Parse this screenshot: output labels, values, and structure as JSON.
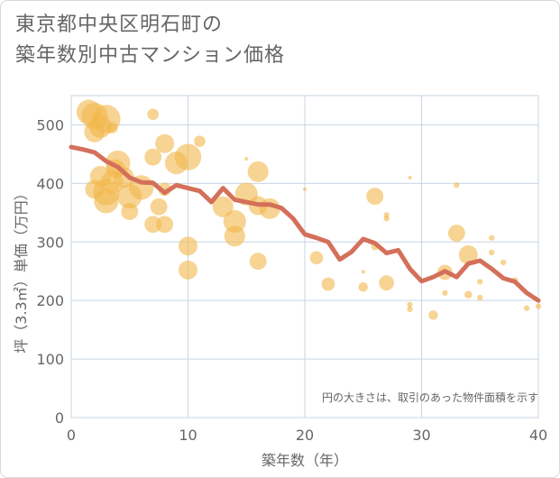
{
  "title": {
    "line1": "東京都中央区明石町の",
    "line2": "築年数別中古マンション価格"
  },
  "chart_data": {
    "type": "scatter",
    "title": "東京都中央区明石町の築年数別中古マンション価格",
    "xlabel": "築年数（年）",
    "ylabel": "坪（3.3㎡）単価（万円）",
    "xlim": [
      0,
      40
    ],
    "ylim": [
      0,
      550
    ],
    "xticks": [
      0,
      10,
      20,
      30,
      40
    ],
    "yticks": [
      0,
      100,
      200,
      300,
      400,
      500
    ],
    "grid": true,
    "annotation": "円の大きさは、取引のあった物件面積を示す",
    "colors": {
      "bubble": "#f2b84b",
      "line": "#d4705a",
      "grid": "#c9d6e3",
      "text": "#666666"
    },
    "bubbles": [
      {
        "x": 1.5,
        "y": 522,
        "s": 13
      },
      {
        "x": 2.0,
        "y": 515,
        "s": 14
      },
      {
        "x": 2.5,
        "y": 497,
        "s": 12
      },
      {
        "x": 2.0,
        "y": 488,
        "s": 11
      },
      {
        "x": 3.0,
        "y": 510,
        "s": 15
      },
      {
        "x": 3.5,
        "y": 495,
        "s": 6
      },
      {
        "x": 2.5,
        "y": 412,
        "s": 11
      },
      {
        "x": 2.0,
        "y": 390,
        "s": 10
      },
      {
        "x": 3.0,
        "y": 385,
        "s": 14
      },
      {
        "x": 3.5,
        "y": 402,
        "s": 12
      },
      {
        "x": 3.0,
        "y": 370,
        "s": 13
      },
      {
        "x": 3.8,
        "y": 425,
        "s": 10
      },
      {
        "x": 4.0,
        "y": 435,
        "s": 13
      },
      {
        "x": 4.5,
        "y": 410,
        "s": 11
      },
      {
        "x": 5.0,
        "y": 378,
        "s": 13
      },
      {
        "x": 5.0,
        "y": 352,
        "s": 9
      },
      {
        "x": 6.0,
        "y": 393,
        "s": 13
      },
      {
        "x": 7.0,
        "y": 518,
        "s": 6
      },
      {
        "x": 7.0,
        "y": 445,
        "s": 9
      },
      {
        "x": 7.5,
        "y": 360,
        "s": 9
      },
      {
        "x": 7.0,
        "y": 330,
        "s": 9
      },
      {
        "x": 8.0,
        "y": 468,
        "s": 10
      },
      {
        "x": 8.0,
        "y": 390,
        "s": 7
      },
      {
        "x": 8.0,
        "y": 330,
        "s": 9
      },
      {
        "x": 9.0,
        "y": 435,
        "s": 12
      },
      {
        "x": 10.0,
        "y": 445,
        "s": 14
      },
      {
        "x": 11.0,
        "y": 472,
        "s": 6
      },
      {
        "x": 10.0,
        "y": 293,
        "s": 10
      },
      {
        "x": 10.0,
        "y": 252,
        "s": 10
      },
      {
        "x": 13.0,
        "y": 360,
        "s": 11
      },
      {
        "x": 14.0,
        "y": 335,
        "s": 12
      },
      {
        "x": 14.0,
        "y": 310,
        "s": 11
      },
      {
        "x": 15.0,
        "y": 442,
        "s": 2
      },
      {
        "x": 15.0,
        "y": 382,
        "s": 12
      },
      {
        "x": 16.0,
        "y": 420,
        "s": 11
      },
      {
        "x": 16.0,
        "y": 362,
        "s": 10
      },
      {
        "x": 17.0,
        "y": 357,
        "s": 11
      },
      {
        "x": 16.0,
        "y": 267,
        "s": 9
      },
      {
        "x": 20.0,
        "y": 390,
        "s": 1
      },
      {
        "x": 21.0,
        "y": 273,
        "s": 7
      },
      {
        "x": 22.0,
        "y": 228,
        "s": 7
      },
      {
        "x": 25.0,
        "y": 249,
        "s": 2
      },
      {
        "x": 25.0,
        "y": 223,
        "s": 5
      },
      {
        "x": 26.0,
        "y": 378,
        "s": 9
      },
      {
        "x": 26.0,
        "y": 292,
        "s": 4
      },
      {
        "x": 27.0,
        "y": 346,
        "s": 3
      },
      {
        "x": 27.0,
        "y": 340,
        "s": 3
      },
      {
        "x": 27.0,
        "y": 230,
        "s": 8
      },
      {
        "x": 29.0,
        "y": 410,
        "s": 2
      },
      {
        "x": 29.0,
        "y": 193,
        "s": 3
      },
      {
        "x": 29.0,
        "y": 185,
        "s": 3
      },
      {
        "x": 31.0,
        "y": 175,
        "s": 5
      },
      {
        "x": 32.0,
        "y": 248,
        "s": 8
      },
      {
        "x": 32.0,
        "y": 213,
        "s": 3
      },
      {
        "x": 33.0,
        "y": 397,
        "s": 3
      },
      {
        "x": 33.0,
        "y": 315,
        "s": 9
      },
      {
        "x": 34.0,
        "y": 278,
        "s": 10
      },
      {
        "x": 34.0,
        "y": 210,
        "s": 4
      },
      {
        "x": 35.0,
        "y": 205,
        "s": 3
      },
      {
        "x": 35.0,
        "y": 232,
        "s": 3
      },
      {
        "x": 36.0,
        "y": 307,
        "s": 3
      },
      {
        "x": 36.0,
        "y": 282,
        "s": 3
      },
      {
        "x": 37.0,
        "y": 265,
        "s": 3
      },
      {
        "x": 38.0,
        "y": 235,
        "s": 3
      },
      {
        "x": 39.0,
        "y": 187,
        "s": 3
      },
      {
        "x": 40.0,
        "y": 190,
        "s": 3
      }
    ],
    "series": [
      {
        "values": [
          {
            "x": 0,
            "y": 462
          },
          {
            "x": 1,
            "y": 458
          },
          {
            "x": 2,
            "y": 453
          },
          {
            "x": 3,
            "y": 438
          },
          {
            "x": 4,
            "y": 428
          },
          {
            "x": 5,
            "y": 410
          },
          {
            "x": 6,
            "y": 402
          },
          {
            "x": 7,
            "y": 401
          },
          {
            "x": 8,
            "y": 384
          },
          {
            "x": 9,
            "y": 397
          },
          {
            "x": 10,
            "y": 392
          },
          {
            "x": 11,
            "y": 387
          },
          {
            "x": 12,
            "y": 368
          },
          {
            "x": 13,
            "y": 392
          },
          {
            "x": 14,
            "y": 372
          },
          {
            "x": 15,
            "y": 368
          },
          {
            "x": 16,
            "y": 364
          },
          {
            "x": 17,
            "y": 364
          },
          {
            "x": 18,
            "y": 358
          },
          {
            "x": 19,
            "y": 340
          },
          {
            "x": 20,
            "y": 313
          },
          {
            "x": 21,
            "y": 307
          },
          {
            "x": 22,
            "y": 300
          },
          {
            "x": 23,
            "y": 270
          },
          {
            "x": 24,
            "y": 283
          },
          {
            "x": 25,
            "y": 305
          },
          {
            "x": 26,
            "y": 298
          },
          {
            "x": 27,
            "y": 281
          },
          {
            "x": 28,
            "y": 286
          },
          {
            "x": 29,
            "y": 254
          },
          {
            "x": 30,
            "y": 233
          },
          {
            "x": 31,
            "y": 240
          },
          {
            "x": 32,
            "y": 250
          },
          {
            "x": 33,
            "y": 240
          },
          {
            "x": 34,
            "y": 263
          },
          {
            "x": 35,
            "y": 268
          },
          {
            "x": 36,
            "y": 254
          },
          {
            "x": 37,
            "y": 238
          },
          {
            "x": 38,
            "y": 232
          },
          {
            "x": 39,
            "y": 213
          },
          {
            "x": 40,
            "y": 200
          }
        ]
      }
    ]
  }
}
